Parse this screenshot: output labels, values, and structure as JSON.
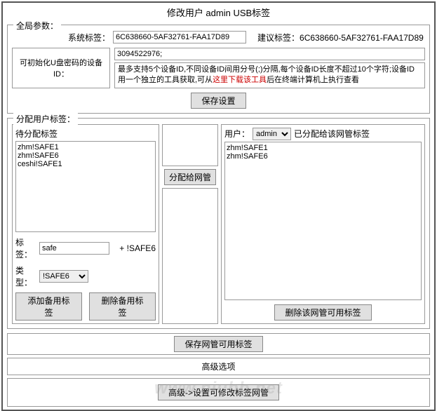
{
  "title": "修改用户 admin USB标签",
  "global": {
    "legend": "全局参数：",
    "sys_label": "系统标签：",
    "sys_value": "6C638660-5AF32761-FAA17D89",
    "suggest_label": "建议标签：",
    "suggest_value": "6C638660-5AF32761-FAA17D89",
    "device_label": "可初始化U盘密码的设备ID：",
    "device_value": "3094522976;",
    "hint_prefix": "最多支持5个设备ID,不同设备ID间用分号(;)分隔,每个设备ID长度不超过10个字符;设备ID用一个独立的工具获取,可从",
    "hint_red": "这里下载该工具",
    "hint_suffix": "后在终端计算机上执行查看",
    "save_btn": "保存设置"
  },
  "assign": {
    "legend": "分配用户标签：",
    "left_title": "待分配标签",
    "left_items": "zhm!SAFE1\nzhm!SAFE6\nceshi!SAFE1",
    "tag_label": "标签：",
    "tag_value": "safe",
    "tag_suffix": "+ !SAFE6",
    "type_label": "类型：",
    "type_value": "!SAFE6",
    "add_btn": "添加备用标签",
    "del_btn": "删除备用标签",
    "mid_btn": "分配给网管",
    "user_label": "用户：",
    "user_value": "admin",
    "right_title": "已分配给该网管标签",
    "right_items": "zhm!SAFE1\nzhm!SAFE6",
    "del_right_btn": "删除该网管可用标签"
  },
  "save_net_btn": "保存网管可用标签",
  "adv_title": "高级选项",
  "adv_btn": "高级->设置可修改标签网管",
  "watermark": "www.niubb.net",
  "colors": {
    "border": "#999999",
    "outer_border": "#555555",
    "btn_bg": "#e0e0e0",
    "red": "#cc0000",
    "watermark": "rgba(150,150,150,0.25)"
  }
}
